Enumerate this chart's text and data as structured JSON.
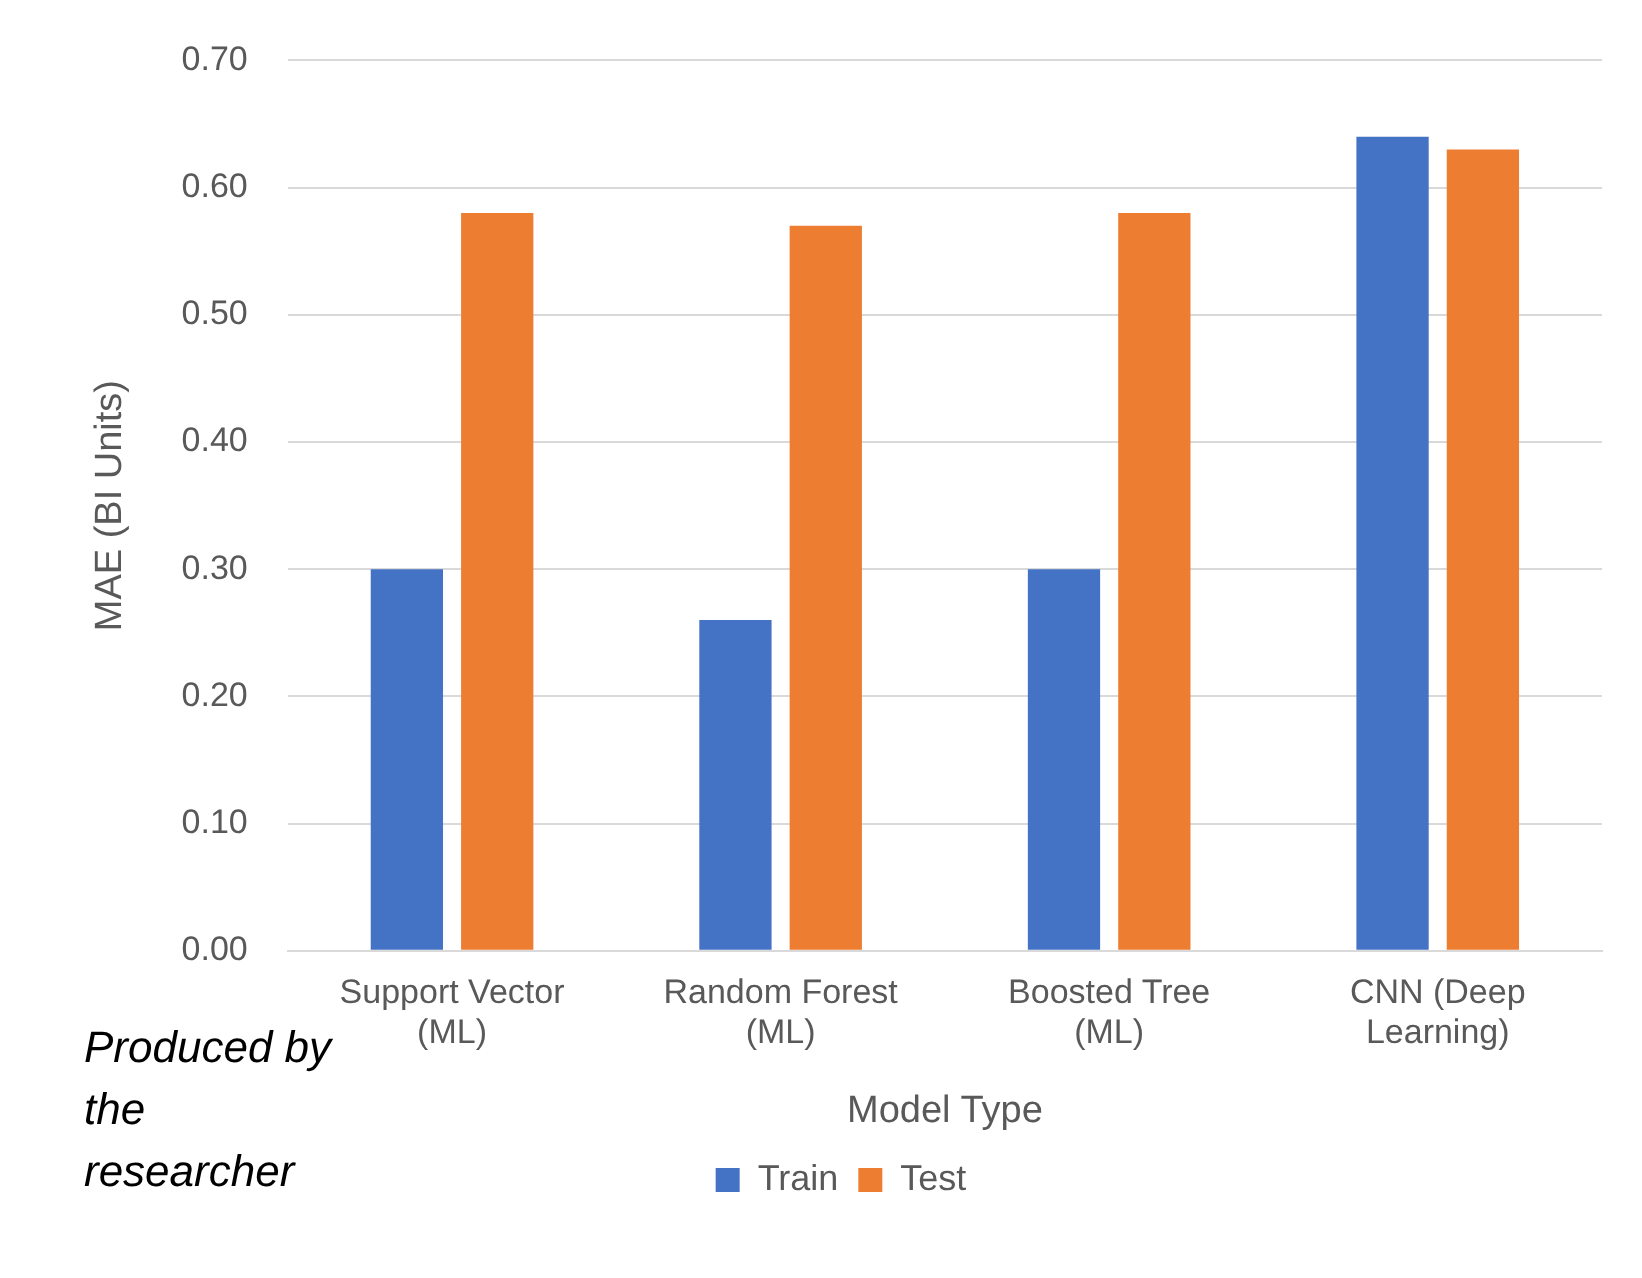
{
  "chart_data": {
    "type": "bar",
    "xlabel": "Model Type",
    "ylabel": "MAE (BI Units)",
    "categories": [
      "Support Vector (ML)",
      "Random Forest (ML)",
      "Boosted Tree (ML)",
      "CNN (Deep Learning)"
    ],
    "series": [
      {
        "name": "Train",
        "color": "#4472c4",
        "values": [
          0.3,
          0.26,
          0.3,
          0.64
        ]
      },
      {
        "name": "Test",
        "color": "#ed7d31",
        "values": [
          0.58,
          0.57,
          0.58,
          0.63
        ]
      }
    ],
    "ylim": [
      0,
      0.7
    ],
    "yticks": [
      {
        "value": 0,
        "label": "0.00"
      },
      {
        "value": 0.1,
        "label": "0.10"
      },
      {
        "value": 0.2,
        "label": "0.20"
      },
      {
        "value": 0.3,
        "label": "0.30"
      },
      {
        "value": 0.4,
        "label": "0.40"
      },
      {
        "value": 0.5,
        "label": "0.50"
      },
      {
        "value": 0.6,
        "label": "0.60"
      },
      {
        "value": 0.7,
        "label": "0.70"
      }
    ],
    "grid": "y",
    "legend": "bottom",
    "annotations": [
      "Produced by the researcher"
    ]
  }
}
